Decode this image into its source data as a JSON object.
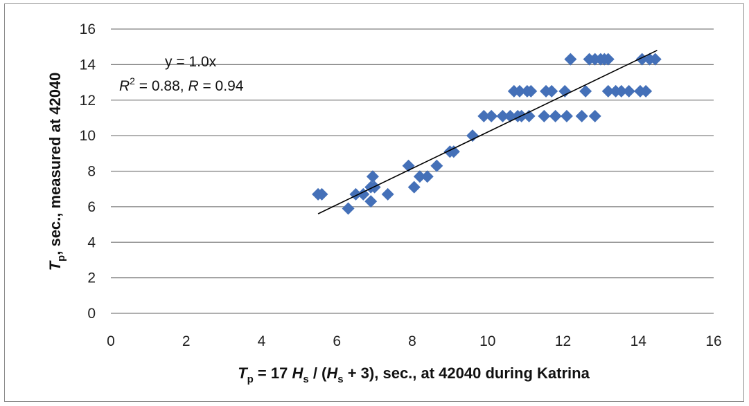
{
  "chart_data": {
    "type": "scatter",
    "xlim": [
      0,
      16
    ],
    "ylim": [
      0,
      16
    ],
    "x_ticks": [
      "0",
      "2",
      "4",
      "6",
      "8",
      "10",
      "12",
      "14",
      "16"
    ],
    "y_ticks": [
      "0",
      "2",
      "4",
      "6",
      "8",
      "10",
      "12",
      "14",
      "16"
    ],
    "grid": "horizontal",
    "legend": "none",
    "marker": "diamond",
    "marker_color": "#4470b8",
    "xlabel": {
      "p1": "T",
      "p1_sub": "p",
      "p2": " = 17 ",
      "p3": "H",
      "p3_sub": "s",
      "p4": " / (",
      "p5": "H",
      "p5_sub": "s",
      "p6": " + 3), sec., at 42040 during Katrina"
    },
    "ylabel": {
      "p1": "T",
      "p1_sub": "p",
      "p2": ", sec., measured at 42040"
    },
    "annotation": {
      "equation": "y = 1.0x",
      "r2_label": "R",
      "r2_sup": "2",
      "r2_rest": " = 0.88, ",
      "r_label": "R",
      "r_rest": " = 0.94"
    },
    "trendline": {
      "x": [
        5.5,
        14.5
      ],
      "y": [
        5.6,
        14.8
      ],
      "color": "#000000"
    },
    "points": [
      [
        5.5,
        6.7
      ],
      [
        5.6,
        6.7
      ],
      [
        6.3,
        5.9
      ],
      [
        6.5,
        6.7
      ],
      [
        6.7,
        6.7
      ],
      [
        6.9,
        6.3
      ],
      [
        6.9,
        7.1
      ],
      [
        6.95,
        7.7
      ],
      [
        7.0,
        7.1
      ],
      [
        7.35,
        6.7
      ],
      [
        7.9,
        8.3
      ],
      [
        8.05,
        7.1
      ],
      [
        8.2,
        7.7
      ],
      [
        8.4,
        7.7
      ],
      [
        8.65,
        8.3
      ],
      [
        9.0,
        9.1
      ],
      [
        9.1,
        9.1
      ],
      [
        9.6,
        10.0
      ],
      [
        9.9,
        11.1
      ],
      [
        10.1,
        11.1
      ],
      [
        10.4,
        11.1
      ],
      [
        10.6,
        11.1
      ],
      [
        10.8,
        11.1
      ],
      [
        10.9,
        11.1
      ],
      [
        11.1,
        11.1
      ],
      [
        11.5,
        11.1
      ],
      [
        11.8,
        11.1
      ],
      [
        12.1,
        11.1
      ],
      [
        12.5,
        11.1
      ],
      [
        12.85,
        11.1
      ],
      [
        10.7,
        12.5
      ],
      [
        10.85,
        12.5
      ],
      [
        11.05,
        12.5
      ],
      [
        11.15,
        12.5
      ],
      [
        11.55,
        12.5
      ],
      [
        11.7,
        12.5
      ],
      [
        12.05,
        12.5
      ],
      [
        12.6,
        12.5
      ],
      [
        13.2,
        12.5
      ],
      [
        13.4,
        12.5
      ],
      [
        13.55,
        12.5
      ],
      [
        13.75,
        12.5
      ],
      [
        14.05,
        12.5
      ],
      [
        14.2,
        12.5
      ],
      [
        12.2,
        14.3
      ],
      [
        12.7,
        14.3
      ],
      [
        12.85,
        14.3
      ],
      [
        13.0,
        14.3
      ],
      [
        13.1,
        14.3
      ],
      [
        13.2,
        14.3
      ],
      [
        14.1,
        14.3
      ],
      [
        14.3,
        14.3
      ],
      [
        14.45,
        14.3
      ]
    ]
  }
}
